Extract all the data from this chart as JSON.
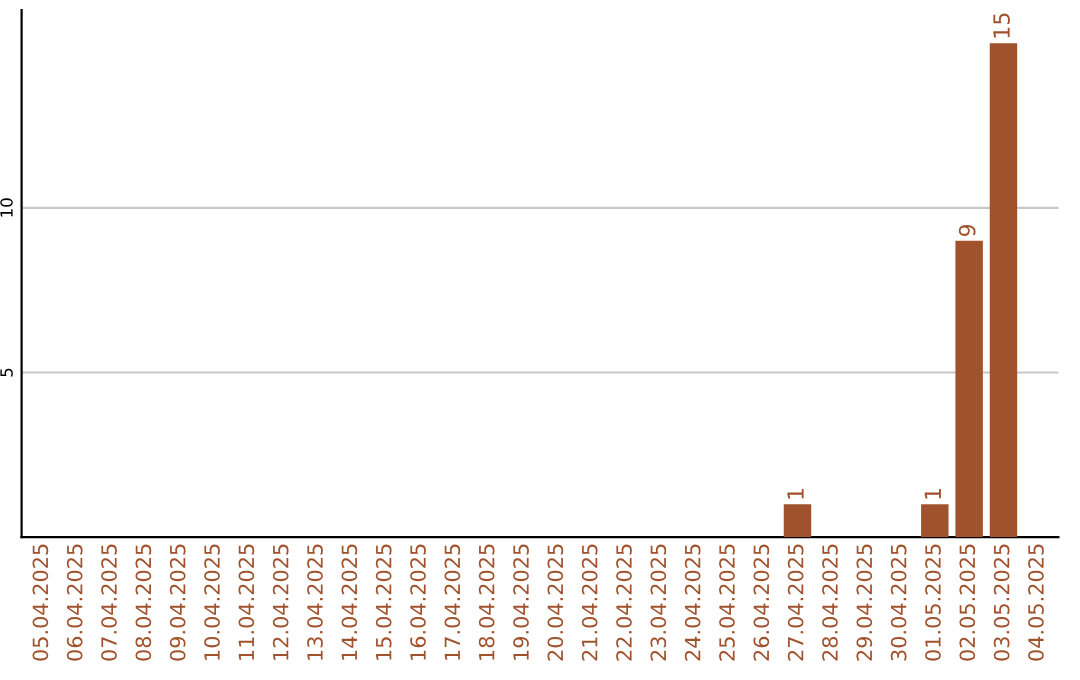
{
  "chart_data": {
    "type": "bar",
    "categories": [
      "05.04.2025",
      "06.04.2025",
      "07.04.2025",
      "08.04.2025",
      "09.04.2025",
      "10.04.2025",
      "11.04.2025",
      "12.04.2025",
      "13.04.2025",
      "14.04.2025",
      "15.04.2025",
      "16.04.2025",
      "17.04.2025",
      "18.04.2025",
      "19.04.2025",
      "20.04.2025",
      "21.04.2025",
      "22.04.2025",
      "23.04.2025",
      "24.04.2025",
      "25.04.2025",
      "26.04.2025",
      "27.04.2025",
      "28.04.2025",
      "29.04.2025",
      "30.04.2025",
      "01.05.2025",
      "02.05.2025",
      "03.05.2025",
      "04.05.2025"
    ],
    "values": [
      0,
      0,
      0,
      0,
      0,
      0,
      0,
      0,
      0,
      0,
      0,
      0,
      0,
      0,
      0,
      0,
      0,
      0,
      0,
      0,
      0,
      0,
      1,
      0,
      0,
      0,
      1,
      9,
      15,
      0
    ],
    "value_labels": [
      null,
      null,
      null,
      null,
      null,
      null,
      null,
      null,
      null,
      null,
      null,
      null,
      null,
      null,
      null,
      null,
      null,
      null,
      null,
      null,
      null,
      null,
      "1",
      null,
      null,
      null,
      "1",
      "9",
      "15",
      null
    ],
    "color": "#a0522d",
    "ylim": [
      0,
      16
    ],
    "yticks": [
      5,
      10
    ],
    "grid": "y"
  }
}
